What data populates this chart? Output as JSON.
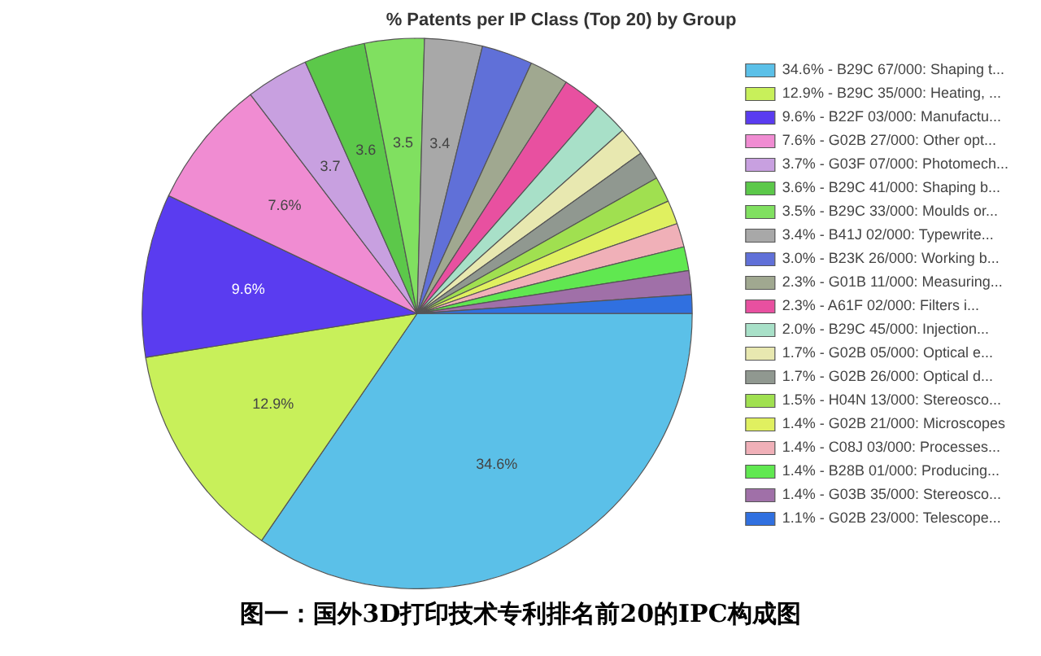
{
  "chart_data": {
    "type": "pie",
    "title": "% Patents per IP Class (Top 20) by Group",
    "categories": [
      "34.6% - B29C 67/000: Shaping t...",
      "12.9% - B29C 35/000: Heating, ...",
      "9.6% - B22F 03/000: Manufactu...",
      "7.6% - G02B 27/000: Other opt...",
      "3.7% - G03F 07/000: Photomech...",
      "3.6% - B29C 41/000: Shaping b...",
      "3.5% - B29C 33/000: Moulds or...",
      "3.4% - B41J 02/000: Typewrite...",
      "3.0% - B23K 26/000: Working b...",
      "2.3% - G01B 11/000: Measuring...",
      "2.3% - A61F 02/000: Filters i...",
      "2.0% - B29C 45/000: Injection...",
      "1.7% - G02B 05/000: Optical e...",
      "1.7% - G02B 26/000: Optical d...",
      "1.5% - H04N 13/000: Stereosco...",
      "1.4% - G02B 21/000: Microscopes",
      "1.4% - C08J 03/000: Processes...",
      "1.4% - B28B 01/000: Producing...",
      "1.4% - G03B 35/000: Stereosco...",
      "1.1% - G02B 23/000: Telescope..."
    ],
    "values": [
      34.6,
      12.9,
      9.6,
      7.6,
      3.7,
      3.6,
      3.5,
      3.4,
      3.0,
      2.3,
      2.3,
      2.0,
      1.7,
      1.7,
      1.5,
      1.4,
      1.4,
      1.4,
      1.4,
      1.1
    ],
    "colors": [
      "#5bc0e8",
      "#c8f05a",
      "#5a3cf0",
      "#f08cd2",
      "#c8a0e0",
      "#5cc84a",
      "#80e060",
      "#a8a8a8",
      "#6070d8",
      "#a0a890",
      "#e850a0",
      "#a8e0c8",
      "#e8e8b0",
      "#909890",
      "#a0e050",
      "#e0f060",
      "#f0b0b8",
      "#60e850",
      "#a070a8",
      "#3070e0"
    ],
    "value_labels": [
      "34.6%",
      "12.9%",
      "9.6%",
      "7.6%",
      "3.7",
      "3.6",
      "3.5",
      "3.4",
      null,
      null,
      null,
      null,
      null,
      null,
      null,
      null,
      null,
      null,
      null,
      null
    ],
    "legend": "right",
    "annotations": [
      "图一：国外3D打印技术专利排名前20的IPC构成图"
    ]
  }
}
